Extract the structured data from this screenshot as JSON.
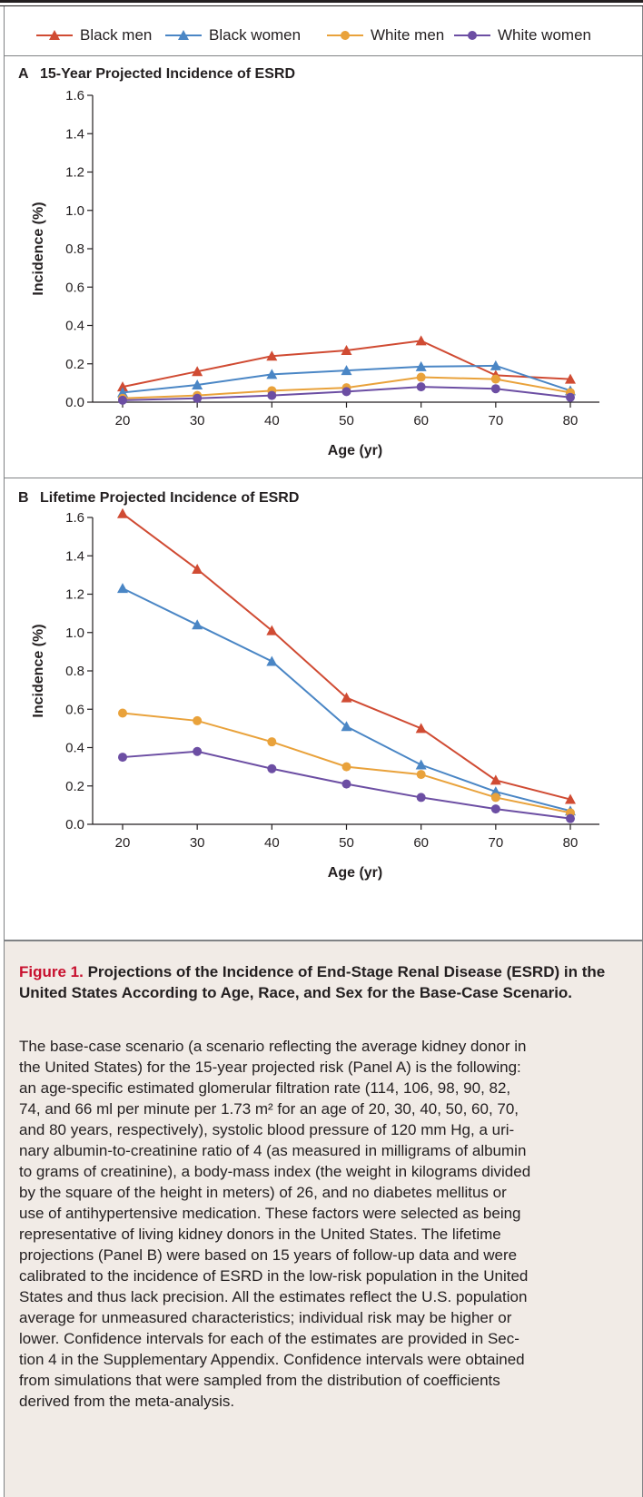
{
  "legend": [
    {
      "label": "Black men",
      "color": "#d04b33",
      "marker": "triangle"
    },
    {
      "label": "Black women",
      "color": "#4a86c5",
      "marker": "triangle"
    },
    {
      "label": "White men",
      "color": "#e9a23b",
      "marker": "circle"
    },
    {
      "label": "White women",
      "color": "#6c4ea3",
      "marker": "circle"
    }
  ],
  "chart_data": [
    {
      "type": "line",
      "panel_letter": "A",
      "title": "15-Year Projected Incidence of ESRD",
      "xlabel": "Age (yr)",
      "ylabel": "Incidence (%)",
      "x": [
        20,
        30,
        40,
        50,
        60,
        70,
        80
      ],
      "ylim": [
        0,
        1.6
      ],
      "yticks": [
        "0.0",
        "0.2",
        "0.4",
        "0.6",
        "0.8",
        "1.0",
        "1.2",
        "1.4",
        "1.6"
      ],
      "xticks": [
        "20",
        "30",
        "40",
        "50",
        "60",
        "70",
        "80"
      ],
      "series": [
        {
          "name": "Black men",
          "values": [
            0.08,
            0.16,
            0.24,
            0.27,
            0.32,
            0.14,
            0.12
          ]
        },
        {
          "name": "Black women",
          "values": [
            0.05,
            0.09,
            0.145,
            0.165,
            0.185,
            0.19,
            0.06
          ]
        },
        {
          "name": "White men",
          "values": [
            0.02,
            0.035,
            0.06,
            0.075,
            0.13,
            0.12,
            0.05
          ]
        },
        {
          "name": "White women",
          "values": [
            0.01,
            0.02,
            0.035,
            0.055,
            0.08,
            0.07,
            0.025
          ]
        }
      ]
    },
    {
      "type": "line",
      "panel_letter": "B",
      "title": "Lifetime Projected Incidence of ESRD",
      "xlabel": "Age (yr)",
      "ylabel": "Incidence (%)",
      "x": [
        20,
        30,
        40,
        50,
        60,
        70,
        80
      ],
      "ylim": [
        0,
        1.6
      ],
      "yticks": [
        "0.0",
        "0.2",
        "0.4",
        "0.6",
        "0.8",
        "1.0",
        "1.2",
        "1.4",
        "1.6"
      ],
      "xticks": [
        "20",
        "30",
        "40",
        "50",
        "60",
        "70",
        "80"
      ],
      "series": [
        {
          "name": "Black men",
          "values": [
            1.62,
            1.33,
            1.01,
            0.66,
            0.5,
            0.23,
            0.13
          ]
        },
        {
          "name": "Black women",
          "values": [
            1.23,
            1.04,
            0.85,
            0.51,
            0.31,
            0.17,
            0.07
          ]
        },
        {
          "name": "White men",
          "values": [
            0.58,
            0.54,
            0.43,
            0.3,
            0.26,
            0.14,
            0.06
          ]
        },
        {
          "name": "White women",
          "values": [
            0.35,
            0.38,
            0.29,
            0.21,
            0.14,
            0.08,
            0.03
          ]
        }
      ]
    }
  ],
  "caption": {
    "figure_label": "Figure 1.",
    "title": "Projections of the Incidence of End-Stage Renal Disease (ESRD) in the United States According to Age, Race, and Sex for the Base-Case Scenario.",
    "body_lines": [
      "The base-case scenario (a scenario reflecting the average kidney donor in",
      "the United States) for the 15-year projected risk (Panel A) is the following:",
      "an age-specific estimated glomerular filtration rate (114, 106, 98, 90, 82,",
      "74, and 66 ml per minute per 1.73 m² for an age of 20, 30, 40, 50, 60, 70,",
      "and 80 years, respectively), systolic blood pressure of 120 mm Hg, a uri-",
      "nary albumin-to-creatinine ratio of 4 (as measured in milligrams of albumin",
      "to grams of creatinine), a body-mass index (the weight in kilograms divided",
      "by the square of the height in meters) of 26, and no diabetes mellitus or",
      "use of antihypertensive medication. These factors were selected as being",
      "representative of living kidney donors in the United States. The lifetime",
      "projections (Panel B) were based on 15 years of follow-up data and were",
      "calibrated to the incidence of ESRD in the low-risk population in the United",
      "States and thus lack precision. All the estimates reflect the U.S. population",
      "average for unmeasured characteristics; individual risk may be higher or",
      "lower. Confidence intervals for each of the estimates are provided in Sec-",
      "tion 4 in the Supplementary Appendix. Confidence intervals were obtained",
      "from simulations that were sampled from the distribution of coefficients",
      "derived from the meta-analysis."
    ]
  }
}
